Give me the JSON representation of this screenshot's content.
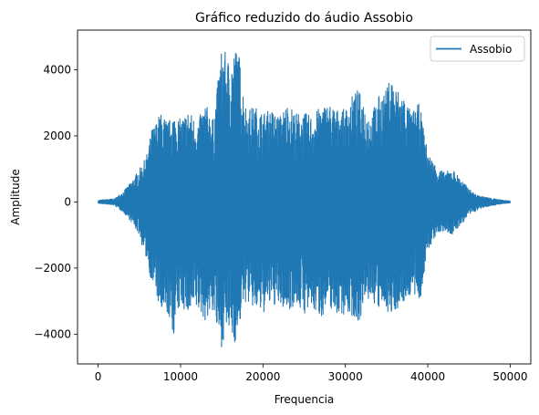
{
  "chart_data": {
    "type": "line",
    "title": "Gráfico reduzido do áudio Assobio",
    "xlabel": "Frequencia",
    "ylabel": "Amplitude",
    "xlim": [
      -2500,
      52500
    ],
    "ylim": [
      -4900,
      5200
    ],
    "xticks": [
      0,
      10000,
      20000,
      30000,
      40000,
      50000
    ],
    "xtick_labels": [
      "0",
      "10000",
      "20000",
      "30000",
      "40000",
      "50000"
    ],
    "yticks": [
      -4000,
      -2000,
      0,
      2000,
      4000
    ],
    "ytick_labels": [
      "−4000",
      "−2000",
      "0",
      "2000",
      "4000"
    ],
    "grid": false,
    "legend_position": "top-right",
    "series": [
      {
        "name": "Assobio",
        "color": "#1f77b4",
        "envelope": {
          "x": [
            0,
            2000,
            3000,
            4000,
            5000,
            5500,
            6000,
            6500,
            7000,
            7500,
            8000,
            8500,
            9000,
            10000,
            11000,
            12000,
            13000,
            14000,
            14500,
            15000,
            15500,
            16000,
            16500,
            17000,
            17500,
            18000,
            19000,
            20000,
            21000,
            22000,
            23000,
            24000,
            25000,
            26000,
            27000,
            28000,
            29000,
            30000,
            31000,
            31500,
            32000,
            33000,
            34000,
            35000,
            35500,
            36000,
            37000,
            38000,
            39000,
            39500,
            40000,
            41000,
            42000,
            43000,
            44000,
            45000,
            46000,
            47000,
            48000,
            49000,
            50000
          ],
          "upper": [
            50,
            100,
            300,
            600,
            1000,
            1200,
            1500,
            2200,
            2400,
            2700,
            2600,
            2400,
            2700,
            2500,
            2800,
            2400,
            3000,
            2500,
            3600,
            4700,
            4500,
            4200,
            4600,
            4700,
            3600,
            2800,
            2900,
            2700,
            2800,
            2600,
            3000,
            2700,
            2700,
            2600,
            2900,
            3000,
            2800,
            2800,
            3300,
            3400,
            3200,
            2600,
            3200,
            3400,
            3900,
            3500,
            3300,
            2700,
            3000,
            2200,
            1500,
            1100,
            900,
            1000,
            700,
            400,
            200,
            150,
            100,
            60,
            30
          ],
          "lower": [
            -40,
            -100,
            -300,
            -600,
            -1000,
            -1500,
            -1800,
            -2500,
            -2700,
            -3400,
            -3600,
            -3400,
            -4200,
            -3100,
            -3500,
            -3300,
            -3600,
            -3300,
            -4100,
            -4400,
            -3900,
            -4000,
            -4300,
            -4100,
            -3200,
            -3000,
            -3300,
            -3400,
            -3100,
            -3200,
            -3300,
            -3100,
            -3400,
            -3300,
            -3500,
            -3200,
            -3400,
            -3400,
            -3500,
            -3700,
            -3400,
            -2900,
            -3300,
            -3200,
            -3600,
            -3300,
            -3100,
            -2800,
            -3100,
            -2300,
            -1500,
            -1000,
            -900,
            -1000,
            -700,
            -400,
            -250,
            -150,
            -100,
            -60,
            -30
          ]
        }
      }
    ]
  }
}
